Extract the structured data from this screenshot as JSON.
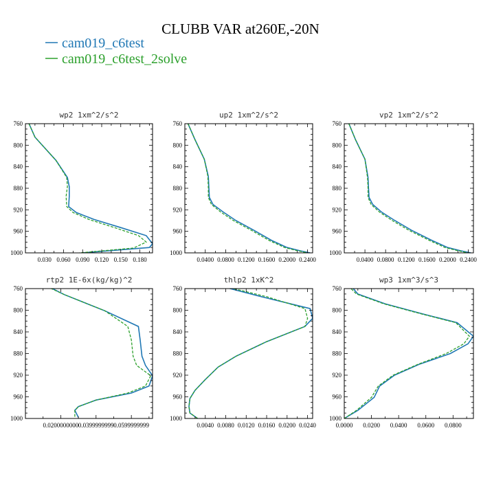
{
  "figure": {
    "title": "CLUBB VAR at260E,-20N",
    "legend": [
      {
        "label": "cam019_c6test",
        "color": "#1f77b4"
      },
      {
        "label": "cam019_c6test_2solve",
        "color": "#2ca02c"
      }
    ]
  },
  "chart_data": [
    {
      "type": "line",
      "title": "wp2  1xm^2/s^2",
      "xlim": [
        0.0,
        0.2
      ],
      "ylim": [
        760,
        1000
      ],
      "y_inverted": true,
      "xticks": [
        0.03,
        0.06,
        0.09,
        0.12,
        0.15,
        0.18
      ],
      "xtick_labels": [
        "0.030",
        "0.060",
        "0.090",
        "0.120",
        "0.150",
        "0.180"
      ],
      "yticks": [
        760,
        800,
        840,
        880,
        920,
        960,
        1000
      ],
      "series": [
        {
          "name": "cam019_c6test",
          "color": "#1f77b4",
          "dash": "solid",
          "points": [
            [
              0.003,
              753
            ],
            [
              0.015,
              785
            ],
            [
              0.048,
              828
            ],
            [
              0.066,
              860
            ],
            [
              0.069,
              877
            ],
            [
              0.069,
              895
            ],
            [
              0.068,
              914
            ],
            [
              0.08,
              925
            ],
            [
              0.108,
              938
            ],
            [
              0.15,
              953
            ],
            [
              0.19,
              968
            ],
            [
              0.2,
              983
            ],
            [
              0.195,
              990
            ],
            [
              0.09,
              1000
            ]
          ]
        },
        {
          "name": "cam019_c6test_2solve",
          "color": "#2ca02c",
          "dash": "dashed",
          "points": [
            [
              0.003,
              753
            ],
            [
              0.015,
              785
            ],
            [
              0.048,
              828
            ],
            [
              0.065,
              860
            ],
            [
              0.066,
              877
            ],
            [
              0.064,
              895
            ],
            [
              0.065,
              914
            ],
            [
              0.075,
              925
            ],
            [
              0.1,
              938
            ],
            [
              0.14,
              953
            ],
            [
              0.178,
              968
            ],
            [
              0.19,
              980
            ],
            [
              0.17,
              991
            ],
            [
              0.085,
              1000
            ]
          ]
        }
      ]
    },
    {
      "type": "line",
      "title": "up2  1xm^2/s^2",
      "xlim": [
        0.0,
        0.25
      ],
      "ylim": [
        760,
        1000
      ],
      "y_inverted": true,
      "xticks": [
        0.04,
        0.08,
        0.12,
        0.16,
        0.2,
        0.24
      ],
      "xtick_labels": [
        "0.0400",
        "0.0800",
        "0.1200",
        "0.1600",
        "0.2000",
        "0.2400"
      ],
      "yticks": [
        760,
        800,
        840,
        880,
        920,
        960,
        1000
      ],
      "series": [
        {
          "name": "cam019_c6test",
          "color": "#1f77b4",
          "dash": "solid",
          "points": [
            [
              0.003,
              753
            ],
            [
              0.02,
              790
            ],
            [
              0.038,
              826
            ],
            [
              0.046,
              858
            ],
            [
              0.047,
              880
            ],
            [
              0.048,
              897
            ],
            [
              0.055,
              910
            ],
            [
              0.075,
              924
            ],
            [
              0.1,
              940
            ],
            [
              0.135,
              958
            ],
            [
              0.17,
              977
            ],
            [
              0.2,
              990
            ],
            [
              0.225,
              996
            ],
            [
              0.245,
              1000
            ]
          ]
        },
        {
          "name": "cam019_c6test_2solve",
          "color": "#2ca02c",
          "dash": "dashed",
          "points": [
            [
              0.003,
              753
            ],
            [
              0.02,
              790
            ],
            [
              0.038,
              826
            ],
            [
              0.045,
              858
            ],
            [
              0.046,
              880
            ],
            [
              0.046,
              897
            ],
            [
              0.052,
              910
            ],
            [
              0.07,
              924
            ],
            [
              0.095,
              940
            ],
            [
              0.13,
              958
            ],
            [
              0.165,
              977
            ],
            [
              0.195,
              990
            ],
            [
              0.22,
              996
            ],
            [
              0.24,
              1000
            ]
          ]
        }
      ]
    },
    {
      "type": "line",
      "title": "vp2  1xm^2/s^2",
      "xlim": [
        0.0,
        0.25
      ],
      "ylim": [
        760,
        1000
      ],
      "y_inverted": true,
      "xticks": [
        0.04,
        0.08,
        0.12,
        0.16,
        0.2,
        0.24
      ],
      "xtick_labels": [
        "0.0400",
        "0.0800",
        "0.1200",
        "0.1600",
        "0.2000",
        "0.2400"
      ],
      "yticks": [
        760,
        800,
        840,
        880,
        920,
        960,
        1000
      ],
      "series": [
        {
          "name": "cam019_c6test",
          "color": "#1f77b4",
          "dash": "solid",
          "points": [
            [
              0.006,
              753
            ],
            [
              0.022,
              790
            ],
            [
              0.04,
              826
            ],
            [
              0.046,
              860
            ],
            [
              0.047,
              880
            ],
            [
              0.048,
              897
            ],
            [
              0.055,
              910
            ],
            [
              0.072,
              924
            ],
            [
              0.098,
              940
            ],
            [
              0.13,
              958
            ],
            [
              0.17,
              977
            ],
            [
              0.2,
              990
            ],
            [
              0.225,
              996
            ],
            [
              0.245,
              1000
            ]
          ]
        },
        {
          "name": "cam019_c6test_2solve",
          "color": "#2ca02c",
          "dash": "dashed",
          "points": [
            [
              0.006,
              753
            ],
            [
              0.022,
              790
            ],
            [
              0.04,
              826
            ],
            [
              0.045,
              860
            ],
            [
              0.046,
              880
            ],
            [
              0.046,
              897
            ],
            [
              0.052,
              910
            ],
            [
              0.068,
              924
            ],
            [
              0.093,
              940
            ],
            [
              0.125,
              958
            ],
            [
              0.165,
              977
            ],
            [
              0.195,
              990
            ],
            [
              0.22,
              996
            ],
            [
              0.24,
              1000
            ]
          ]
        }
      ]
    },
    {
      "type": "line",
      "title": "rtp2  1E-6x(kg/kg)^2",
      "xlim": [
        0.0,
        0.072
      ],
      "ylim": [
        760,
        1000
      ],
      "y_inverted": true,
      "xticks": [
        0.02,
        0.04,
        0.06
      ],
      "xtick_labels": [
        "0.0200000000",
        "0.0399999999",
        "0.0599999999"
      ],
      "yticks": [
        760,
        800,
        840,
        880,
        920,
        960,
        1000
      ],
      "series": [
        {
          "name": "cam019_c6test",
          "color": "#1f77b4",
          "dash": "solid",
          "points": [
            [
              0.011,
              753
            ],
            [
              0.022,
              771
            ],
            [
              0.045,
              801
            ],
            [
              0.064,
              830
            ],
            [
              0.065,
              855
            ],
            [
              0.066,
              885
            ],
            [
              0.068,
              902
            ],
            [
              0.072,
              921
            ],
            [
              0.07,
              940
            ],
            [
              0.06,
              953
            ],
            [
              0.04,
              966
            ],
            [
              0.03,
              978
            ],
            [
              0.028,
              985
            ],
            [
              0.03,
              998
            ]
          ]
        },
        {
          "name": "cam019_c6test_2solve",
          "color": "#2ca02c",
          "dash": "dashed",
          "points": [
            [
              0.01,
              753
            ],
            [
              0.022,
              771
            ],
            [
              0.045,
              801
            ],
            [
              0.058,
              830
            ],
            [
              0.06,
              855
            ],
            [
              0.061,
              885
            ],
            [
              0.063,
              902
            ],
            [
              0.071,
              921
            ],
            [
              0.068,
              940
            ],
            [
              0.058,
              953
            ],
            [
              0.04,
              966
            ],
            [
              0.03,
              978
            ],
            [
              0.028,
              985
            ],
            [
              0.028,
              998
            ]
          ]
        }
      ]
    },
    {
      "type": "line",
      "title": "thlp2  1xK^2",
      "xlim": [
        0.0,
        0.025
      ],
      "ylim": [
        760,
        1000
      ],
      "y_inverted": true,
      "xticks": [
        0.004,
        0.008,
        0.012,
        0.016,
        0.02,
        0.024
      ],
      "xtick_labels": [
        "0.0040",
        "0.0080",
        "0.0120",
        "0.0160",
        "0.0200",
        "0.0240"
      ],
      "yticks": [
        760,
        800,
        840,
        880,
        920,
        960,
        1000
      ],
      "series": [
        {
          "name": "cam019_c6test",
          "color": "#1f77b4",
          "dash": "solid",
          "points": [
            [
              0.006,
              753
            ],
            [
              0.015,
              775
            ],
            [
              0.0245,
              797
            ],
            [
              0.025,
              815
            ],
            [
              0.0235,
              830
            ],
            [
              0.016,
              858
            ],
            [
              0.01,
              885
            ],
            [
              0.0065,
              905
            ],
            [
              0.004,
              928
            ],
            [
              0.002,
              948
            ],
            [
              0.001,
              963
            ],
            [
              0.0008,
              978
            ],
            [
              0.001,
              990
            ],
            [
              0.0025,
              1000
            ]
          ]
        },
        {
          "name": "cam019_c6test_2solve",
          "color": "#2ca02c",
          "dash": "dashed",
          "points": [
            [
              0.0065,
              753
            ],
            [
              0.016,
              775
            ],
            [
              0.0235,
              797
            ],
            [
              0.024,
              815
            ],
            [
              0.0235,
              830
            ],
            [
              0.016,
              858
            ],
            [
              0.01,
              885
            ],
            [
              0.0065,
              905
            ],
            [
              0.004,
              928
            ],
            [
              0.002,
              948
            ],
            [
              0.001,
              963
            ],
            [
              0.0008,
              978
            ],
            [
              0.001,
              990
            ],
            [
              0.0025,
              1000
            ]
          ]
        }
      ]
    },
    {
      "type": "line",
      "title": "wp3  1xm^3/s^3",
      "xlim": [
        0.0,
        0.095
      ],
      "ylim": [
        760,
        1000
      ],
      "y_inverted": true,
      "xticks": [
        0.0,
        0.02,
        0.04,
        0.06,
        0.08
      ],
      "xtick_labels": [
        "0.0000",
        "0.0200",
        "0.0400",
        "0.0600",
        "0.0800"
      ],
      "yticks": [
        760,
        800,
        840,
        880,
        920,
        960,
        1000
      ],
      "series": [
        {
          "name": "cam019_c6test",
          "color": "#1f77b4",
          "dash": "solid",
          "points": [
            [
              0.005,
              755
            ],
            [
              0.01,
              770
            ],
            [
              0.03,
              788
            ],
            [
              0.058,
              807
            ],
            [
              0.083,
              823
            ],
            [
              0.095,
              848
            ],
            [
              0.091,
              862
            ],
            [
              0.078,
              880
            ],
            [
              0.055,
              900
            ],
            [
              0.037,
              920
            ],
            [
              0.026,
              940
            ],
            [
              0.022,
              961
            ],
            [
              0.01,
              985
            ],
            [
              0.0,
              1000
            ]
          ]
        },
        {
          "name": "cam019_c6test_2solve",
          "color": "#2ca02c",
          "dash": "dashed",
          "points": [
            [
              0.003,
              755
            ],
            [
              0.009,
              770
            ],
            [
              0.029,
              788
            ],
            [
              0.057,
              807
            ],
            [
              0.082,
              823
            ],
            [
              0.092,
              848
            ],
            [
              0.088,
              862
            ],
            [
              0.075,
              880
            ],
            [
              0.054,
              900
            ],
            [
              0.036,
              920
            ],
            [
              0.025,
              940
            ],
            [
              0.02,
              961
            ],
            [
              0.009,
              985
            ],
            [
              0.0,
              1000
            ]
          ]
        }
      ]
    }
  ]
}
